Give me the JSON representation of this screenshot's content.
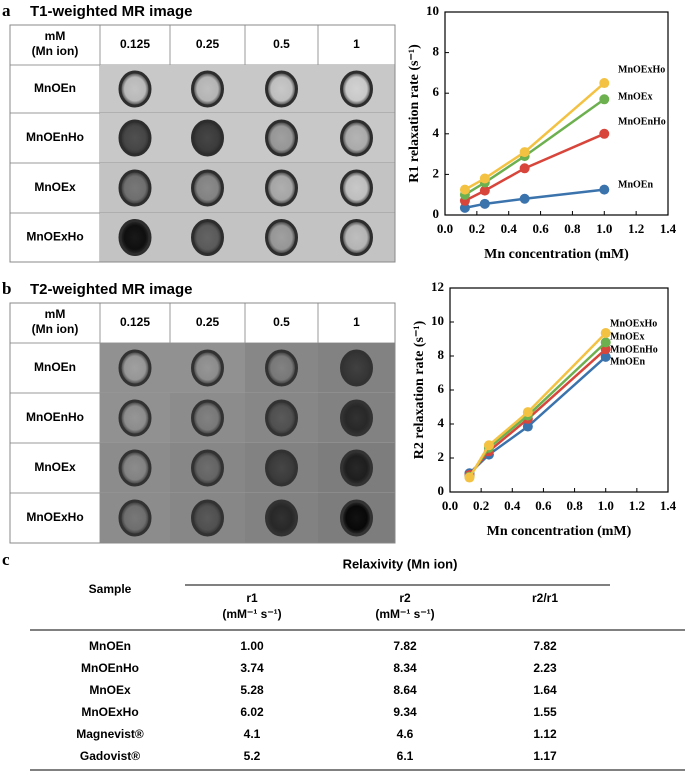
{
  "panel_a": {
    "label": "a",
    "title": "T1-weighted MR image",
    "header_unit": [
      "mM",
      "(Mn ion)"
    ],
    "columns": [
      "0.125",
      "0.25",
      "0.5",
      "1"
    ],
    "rows": [
      "MnOEn",
      "MnOEnHo",
      "MnOEx",
      "MnOExHo"
    ]
  },
  "panel_b": {
    "label": "b",
    "title": "T2-weighted MR image",
    "header_unit": [
      "mM",
      "(Mn ion)"
    ],
    "columns": [
      "0.125",
      "0.25",
      "0.5",
      "1"
    ],
    "rows": [
      "MnOEn",
      "MnOEnHo",
      "MnOEx",
      "MnOExHo"
    ]
  },
  "chart_data": [
    {
      "type": "line",
      "xlabel": "Mn concentration (mM)",
      "ylabel": "R1 relaxation rate (s⁻¹)",
      "x": [
        0.125,
        0.25,
        0.5,
        1
      ],
      "series": [
        {
          "name": "MnOEn",
          "color": "#3b73ad",
          "values": [
            0.35,
            0.55,
            0.8,
            1.25
          ]
        },
        {
          "name": "MnOEnHo",
          "color": "#d8453b",
          "values": [
            0.7,
            1.2,
            2.3,
            4.0
          ]
        },
        {
          "name": "MnOEx",
          "color": "#6db04f",
          "values": [
            1.0,
            1.6,
            2.9,
            5.7
          ]
        },
        {
          "name": "MnOExHo",
          "color": "#f4c243",
          "values": [
            1.25,
            1.8,
            3.1,
            6.5
          ]
        }
      ],
      "xlim": [
        0,
        1.4
      ],
      "xticks": [
        {
          "value": 0,
          "label": "0.0"
        },
        0.2,
        0.4,
        0.6,
        0.8,
        {
          "value": 1,
          "label": "1.0"
        },
        1.2,
        1.4
      ],
      "ylim": [
        0,
        10
      ],
      "yticks": [
        0,
        2,
        4,
        6,
        8,
        10
      ]
    },
    {
      "type": "line",
      "xlabel": "Mn concentration (mM)",
      "ylabel": "R2 relaxation rate (s⁻¹)",
      "x": [
        0.125,
        0.25,
        0.5,
        1
      ],
      "series": [
        {
          "name": "MnOEn",
          "color": "#3b73ad",
          "values": [
            1.1,
            2.2,
            3.85,
            7.95
          ]
        },
        {
          "name": "MnOEnHo",
          "color": "#d8453b",
          "values": [
            1.0,
            2.4,
            4.3,
            8.4
          ]
        },
        {
          "name": "MnOEx",
          "color": "#6db04f",
          "values": [
            0.9,
            2.6,
            4.5,
            8.8
          ]
        },
        {
          "name": "MnOExHo",
          "color": "#f4c243",
          "values": [
            0.85,
            2.75,
            4.7,
            9.35
          ]
        }
      ],
      "xlim": [
        0,
        1.4
      ],
      "xticks": [
        {
          "value": 0,
          "label": "0.0"
        },
        0.2,
        0.4,
        0.6,
        0.8,
        {
          "value": 1,
          "label": "1.0"
        },
        1.2,
        1.4
      ],
      "ylim": [
        0,
        12
      ],
      "yticks": [
        0,
        2,
        4,
        6,
        8,
        10,
        12
      ]
    }
  ],
  "panel_c": {
    "label": "c",
    "group_header": "Relaxivity (Mn ion)",
    "headers": [
      [
        "Sample"
      ],
      [
        "r1",
        "(mM⁻¹ s⁻¹)"
      ],
      [
        "r2",
        "(mM⁻¹ s⁻¹)"
      ],
      [
        "r2/r1"
      ]
    ],
    "rows": [
      [
        "MnOEn",
        "1.00",
        "7.82",
        "7.82"
      ],
      [
        "MnOEnHo",
        "3.74",
        "8.34",
        "2.23"
      ],
      [
        "MnOEx",
        "5.28",
        "8.64",
        "1.64"
      ],
      [
        "MnOExHo",
        "6.02",
        "9.34",
        "1.55"
      ],
      [
        "Magnevist®",
        "4.1",
        "4.6",
        "1.12"
      ],
      [
        "Gadovist®",
        "5.2",
        "6.1",
        "1.17"
      ]
    ]
  }
}
